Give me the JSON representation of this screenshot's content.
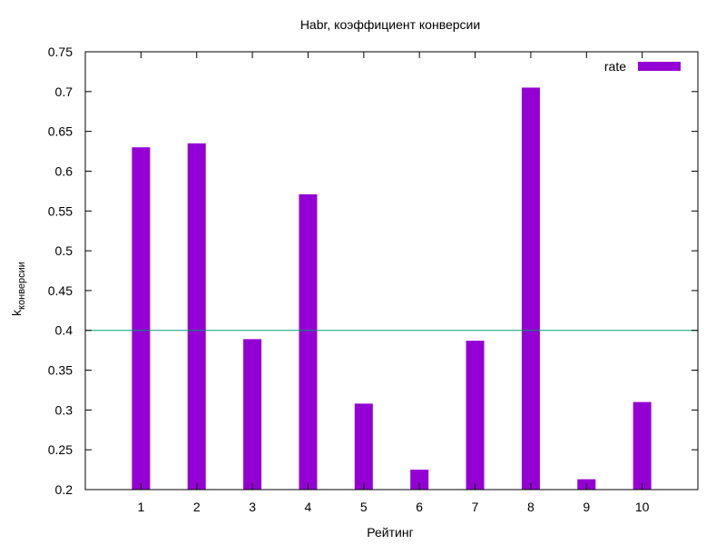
{
  "chart_data": {
    "type": "bar",
    "title": "Habr, коэффициент конверсии",
    "xlabel": "Рейтинг",
    "ylabel_main": "k",
    "ylabel_sub": "конверсии",
    "categories": [
      "1",
      "2",
      "3",
      "4",
      "5",
      "6",
      "7",
      "8",
      "9",
      "10"
    ],
    "series": [
      {
        "name": "rate",
        "color": "#9400d3",
        "values": [
          0.63,
          0.635,
          0.389,
          0.571,
          0.308,
          0.225,
          0.387,
          0.705,
          0.213,
          0.31
        ]
      }
    ],
    "reference_line": {
      "y": 0.4,
      "color": "#009e73"
    },
    "ylim": [
      0.2,
      0.75
    ],
    "yticks": [
      "0.2",
      "0.25",
      "0.3",
      "0.35",
      "0.4",
      "0.45",
      "0.5",
      "0.55",
      "0.6",
      "0.65",
      "0.7",
      "0.75"
    ],
    "grid": false,
    "legend_position": "top-right"
  }
}
